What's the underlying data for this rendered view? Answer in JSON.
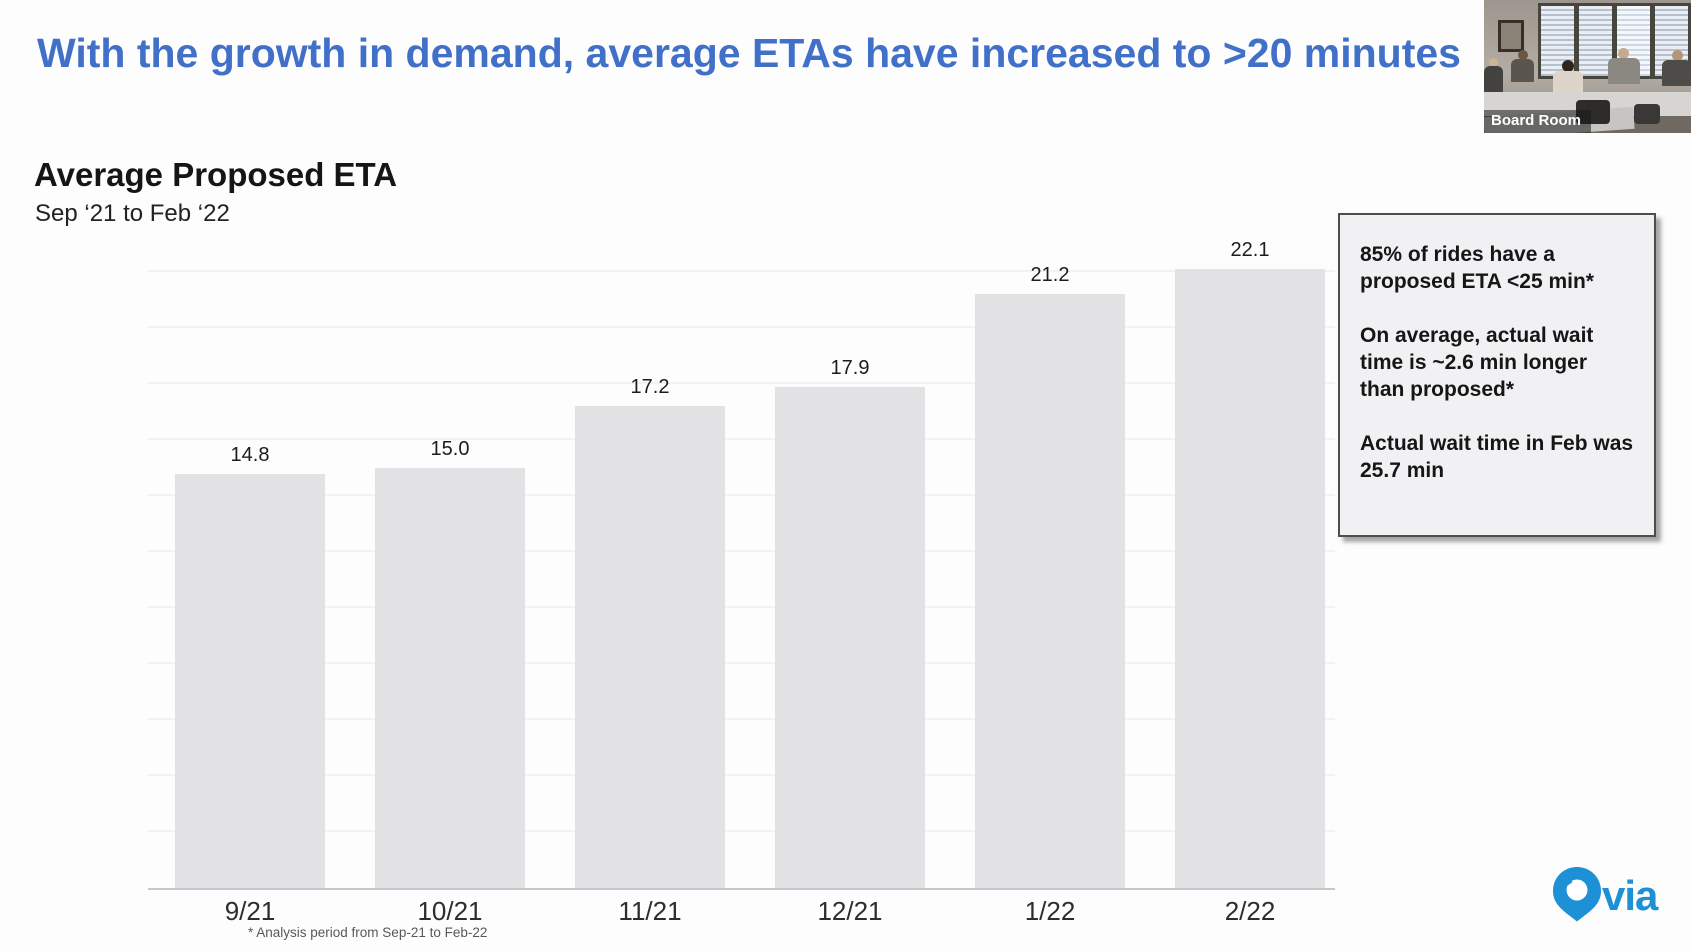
{
  "slide": {
    "title": "With the growth in demand, average ETAs have increased to >20 minutes"
  },
  "chart": {
    "title": "Average Proposed ETA",
    "subtitle": "Sep ‘21 to Feb ‘22",
    "footnote": "* Analysis period from Sep-21 to Feb-22"
  },
  "chart_data": {
    "type": "bar",
    "title": "Average Proposed ETA",
    "subtitle": "Sep '21 to Feb '22",
    "categories": [
      "9/21",
      "10/21",
      "11/21",
      "12/21",
      "1/22",
      "2/22"
    ],
    "values": [
      14.8,
      15.0,
      17.2,
      17.9,
      21.2,
      22.1
    ],
    "value_labels": [
      "14.8",
      "15.0",
      "17.2",
      "17.9",
      "21.2",
      "22.1"
    ],
    "xlabel": "",
    "ylabel": "",
    "ylim": [
      0,
      22.5
    ],
    "gridlines": "horizontal, every 2 minutes, very faint",
    "legend": "none",
    "bar_color": "#e2e1e4"
  },
  "callout": {
    "lines": [
      "85% of rides have a proposed ETA <25 min*",
      "On average, actual wait time is ~2.6 min longer than proposed*",
      "Actual wait time in Feb was 25.7 min"
    ]
  },
  "webcam": {
    "label": "Board Room"
  },
  "logo": {
    "wordmark": "via"
  },
  "colors": {
    "title_blue": "#4170c8",
    "bar_fill": "#e2e1e4",
    "via_blue": "#1e90d6",
    "callout_bg": "#f1f0f2"
  }
}
